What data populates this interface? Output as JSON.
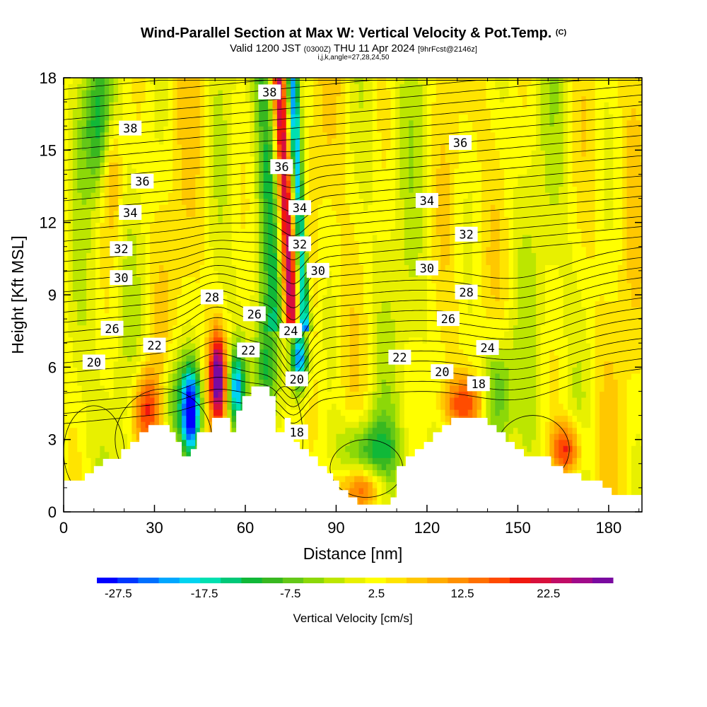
{
  "header": {
    "title_main": "Wind-Parallel Section at Max W: Vertical Velocity & Pot.Temp.",
    "title_copyright": "(C)",
    "valid_prefix": "Valid 1200 JST",
    "valid_utc": "(0300Z)",
    "valid_date": "THU 11 Apr 2024",
    "forecast_info": "[9hrFcst@2146z]",
    "section_params": "i,j,k,angle=27,28,24,50"
  },
  "chart_data": {
    "type": "heatmap",
    "title": "Wind-Parallel Section at Max W: Vertical Velocity & Pot.Temp.",
    "xlabel": "Distance [nm]",
    "ylabel": "Height [Kft MSL]",
    "xlim": [
      0,
      191
    ],
    "ylim": [
      0,
      18
    ],
    "xticks": [
      0,
      30,
      60,
      90,
      120,
      150,
      180
    ],
    "yticks": [
      0,
      3,
      6,
      9,
      12,
      15,
      18
    ],
    "colorbar": {
      "title": "Vertical Velocity [cm/s]",
      "tick_labels": [
        "-27.5",
        "-17.5",
        "-7.5",
        "2.5",
        "12.5",
        "22.5"
      ],
      "tick_values": [
        -27.5,
        -17.5,
        -7.5,
        2.5,
        12.5,
        22.5
      ],
      "range": [
        -30,
        30
      ],
      "colors": [
        "#0000ff",
        "#0037ff",
        "#0070ff",
        "#00a7ff",
        "#00d4f0",
        "#00e0b0",
        "#00c878",
        "#10b838",
        "#38b820",
        "#64c818",
        "#8cd808",
        "#bce600",
        "#e8f000",
        "#ffff00",
        "#ffe400",
        "#ffc800",
        "#ffac00",
        "#ff9000",
        "#ff7000",
        "#ff4c00",
        "#f01810",
        "#d8103c",
        "#c00c66",
        "#a00a8a",
        "#7a0aa0"
      ]
    },
    "potential_temperature_contour_labels": [
      {
        "label": "38",
        "x": 22,
        "y": 15.9
      },
      {
        "label": "38",
        "x": 68,
        "y": 17.4
      },
      {
        "label": "36",
        "x": 26,
        "y": 13.7
      },
      {
        "label": "36",
        "x": 72,
        "y": 14.3
      },
      {
        "label": "36",
        "x": 131,
        "y": 15.3
      },
      {
        "label": "34",
        "x": 22,
        "y": 12.4
      },
      {
        "label": "34",
        "x": 78,
        "y": 12.6
      },
      {
        "label": "34",
        "x": 120,
        "y": 12.9
      },
      {
        "label": "32",
        "x": 19,
        "y": 10.9
      },
      {
        "label": "32",
        "x": 78,
        "y": 11.1
      },
      {
        "label": "32",
        "x": 133,
        "y": 11.5
      },
      {
        "label": "30",
        "x": 19,
        "y": 9.7
      },
      {
        "label": "30",
        "x": 84,
        "y": 10.0
      },
      {
        "label": "30",
        "x": 120,
        "y": 10.1
      },
      {
        "label": "28",
        "x": 49,
        "y": 8.9
      },
      {
        "label": "28",
        "x": 133,
        "y": 9.1
      },
      {
        "label": "26",
        "x": 16,
        "y": 7.6
      },
      {
        "label": "26",
        "x": 63,
        "y": 8.2
      },
      {
        "label": "26",
        "x": 127,
        "y": 8.0
      },
      {
        "label": "24",
        "x": 75,
        "y": 7.5
      },
      {
        "label": "24",
        "x": 140,
        "y": 6.8
      },
      {
        "label": "22",
        "x": 30,
        "y": 6.9
      },
      {
        "label": "22",
        "x": 61,
        "y": 6.7
      },
      {
        "label": "22",
        "x": 111,
        "y": 6.4
      },
      {
        "label": "20",
        "x": 10,
        "y": 6.2
      },
      {
        "label": "20",
        "x": 77,
        "y": 5.5
      },
      {
        "label": "20",
        "x": 125,
        "y": 5.8
      },
      {
        "label": "18",
        "x": 77,
        "y": 3.3
      },
      {
        "label": "18",
        "x": 137,
        "y": 5.3
      }
    ]
  }
}
